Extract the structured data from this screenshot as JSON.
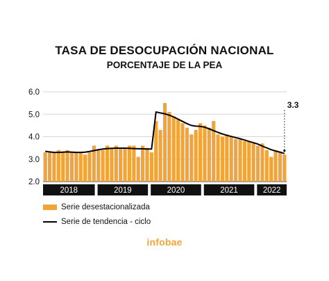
{
  "chart_data": {
    "type": "bar",
    "title": "TASA DE DESOCUPACIÓN NACIONAL",
    "subtitle": "PORCENTAJE DE LA PEA",
    "ylim": [
      2.0,
      6.0
    ],
    "yticks": [
      "2.0",
      "3.0",
      "4.0",
      "5.0",
      "6.0"
    ],
    "grid": true,
    "years": [
      "2018",
      "2019",
      "2020",
      "2021",
      "2022"
    ],
    "year_month_counts": [
      12,
      12,
      12,
      12,
      7
    ],
    "series": [
      {
        "name": "Serie desestacionalizada",
        "type": "bar",
        "color": "#f0a43a",
        "values": [
          3.3,
          3.3,
          3.3,
          3.4,
          3.3,
          3.4,
          3.3,
          3.3,
          3.3,
          3.2,
          3.3,
          3.6,
          3.4,
          3.4,
          3.6,
          3.5,
          3.6,
          3.5,
          3.5,
          3.6,
          3.6,
          3.1,
          3.6,
          3.5,
          3.3,
          4.7,
          4.3,
          5.5,
          5.1,
          4.9,
          4.8,
          4.6,
          4.4,
          4.1,
          4.3,
          4.6,
          4.5,
          4.4,
          4.7,
          4.1,
          4.0,
          4.1,
          4.0,
          3.9,
          3.9,
          3.8,
          3.8,
          3.7,
          3.6,
          3.7,
          3.4,
          3.1,
          3.4,
          3.3,
          3.2
        ]
      },
      {
        "name": "Serie de tendencia - ciclo",
        "type": "line",
        "color": "#000000",
        "values": [
          3.35,
          3.32,
          3.3,
          3.3,
          3.31,
          3.32,
          3.31,
          3.3,
          3.3,
          3.31,
          3.34,
          3.38,
          3.42,
          3.45,
          3.47,
          3.48,
          3.49,
          3.49,
          3.49,
          3.48,
          3.47,
          3.46,
          3.46,
          3.45,
          3.45,
          5.1,
          5.06,
          5.02,
          4.96,
          4.88,
          4.78,
          4.68,
          4.58,
          4.5,
          4.47,
          4.46,
          4.42,
          4.35,
          4.27,
          4.19,
          4.12,
          4.06,
          4.01,
          3.96,
          3.91,
          3.85,
          3.79,
          3.73,
          3.67,
          3.58,
          3.5,
          3.42,
          3.36,
          3.31,
          3.25
        ]
      }
    ],
    "last_value_label": "3.3"
  },
  "source": "infobae"
}
